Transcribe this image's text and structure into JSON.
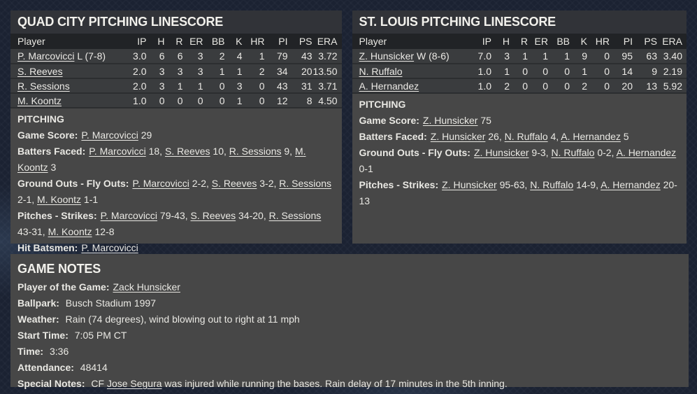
{
  "theme": {
    "page_background": "#1b2232",
    "panel_body": "#474747",
    "title_bar": "#313338",
    "table_header_bg": "#212326",
    "table_row_bg": "#3a3c3e",
    "row_separator": "#2c2e30",
    "title_text": "#f2f1ec",
    "body_text": "#e9e8e3"
  },
  "columns": [
    "Player",
    "IP",
    "H",
    "R",
    "ER",
    "BB",
    "K",
    "HR",
    "PI",
    "PS",
    "ERA"
  ],
  "left_panel": {
    "title": "QUAD CITY PITCHING LINESCORE",
    "rows": [
      {
        "player": "P. Marcovicci",
        "suffix": " L (7-8)",
        "stats": [
          "3.0",
          "6",
          "6",
          "3",
          "2",
          "4",
          "1",
          "79",
          "43",
          "3.72"
        ]
      },
      {
        "player": "S. Reeves",
        "suffix": "",
        "stats": [
          "2.0",
          "3",
          "3",
          "3",
          "1",
          "1",
          "2",
          "34",
          "20",
          "13.50"
        ]
      },
      {
        "player": "R. Sessions",
        "suffix": "",
        "stats": [
          "2.0",
          "3",
          "1",
          "1",
          "0",
          "3",
          "0",
          "43",
          "31",
          "3.71"
        ]
      },
      {
        "player": "M. Koontz",
        "suffix": "",
        "stats": [
          "1.0",
          "0",
          "0",
          "0",
          "0",
          "1",
          "0",
          "12",
          "8",
          "4.50"
        ]
      }
    ],
    "section_title": "PITCHING",
    "notes": [
      {
        "label": "Game Score:",
        "runs": [
          {
            "link": "P. Marcovicci"
          },
          {
            "text": " 29"
          }
        ]
      },
      {
        "label": "Batters Faced:",
        "runs": [
          {
            "link": "P. Marcovicci"
          },
          {
            "text": " 18, "
          },
          {
            "link": "S. Reeves"
          },
          {
            "text": " 10, "
          },
          {
            "link": "R. Sessions"
          },
          {
            "text": " 9, "
          },
          {
            "link": "M. Koontz"
          },
          {
            "text": " 3"
          }
        ]
      },
      {
        "label": "Ground Outs - Fly Outs:",
        "runs": [
          {
            "link": "P. Marcovicci"
          },
          {
            "text": " 2-2, "
          },
          {
            "link": "S. Reeves"
          },
          {
            "text": " 3-2, "
          },
          {
            "link": "R. Sessions"
          },
          {
            "text": " 2-1, "
          },
          {
            "link": "M. Koontz"
          },
          {
            "text": " 1-1"
          }
        ]
      },
      {
        "label": "Pitches - Strikes:",
        "runs": [
          {
            "link": "P. Marcovicci"
          },
          {
            "text": " 79-43, "
          },
          {
            "link": "S. Reeves"
          },
          {
            "text": " 34-20, "
          },
          {
            "link": "R. Sessions"
          },
          {
            "text": " 43-31, "
          },
          {
            "link": "M. Koontz"
          },
          {
            "text": " 12-8"
          }
        ]
      },
      {
        "label": "Hit Batsmen:",
        "runs": [
          {
            "link": "P. Marcovicci"
          }
        ]
      }
    ]
  },
  "right_panel": {
    "title": "ST. LOUIS PITCHING LINESCORE",
    "rows": [
      {
        "player": "Z. Hunsicker",
        "suffix": " W (8-6)",
        "stats": [
          "7.0",
          "3",
          "1",
          "1",
          "1",
          "9",
          "0",
          "95",
          "63",
          "3.40"
        ]
      },
      {
        "player": "N. Ruffalo",
        "suffix": "",
        "stats": [
          "1.0",
          "1",
          "0",
          "0",
          "0",
          "1",
          "0",
          "14",
          "9",
          "2.19"
        ]
      },
      {
        "player": "A. Hernandez",
        "suffix": "",
        "stats": [
          "1.0",
          "2",
          "0",
          "0",
          "0",
          "2",
          "0",
          "20",
          "13",
          "5.92"
        ]
      }
    ],
    "section_title": "PITCHING",
    "notes": [
      {
        "label": "Game Score:",
        "runs": [
          {
            "link": "Z. Hunsicker"
          },
          {
            "text": " 75"
          }
        ]
      },
      {
        "label": "Batters Faced:",
        "runs": [
          {
            "link": "Z. Hunsicker"
          },
          {
            "text": " 26, "
          },
          {
            "link": "N. Ruffalo"
          },
          {
            "text": " 4, "
          },
          {
            "link": "A. Hernandez"
          },
          {
            "text": " 5"
          }
        ]
      },
      {
        "label": "Ground Outs - Fly Outs:",
        "runs": [
          {
            "link": "Z. Hunsicker"
          },
          {
            "text": " 9-3, "
          },
          {
            "link": "N. Ruffalo"
          },
          {
            "text": " 0-2, "
          },
          {
            "link": "A. Hernandez"
          },
          {
            "text": " 0-1"
          }
        ]
      },
      {
        "label": "Pitches - Strikes:",
        "runs": [
          {
            "link": "Z. Hunsicker"
          },
          {
            "text": " 95-63, "
          },
          {
            "link": "N. Ruffalo"
          },
          {
            "text": " 14-9, "
          },
          {
            "link": "A. Hernandez"
          },
          {
            "text": " 20-13"
          }
        ]
      }
    ]
  },
  "game_notes": {
    "title": "GAME NOTES",
    "notes": [
      {
        "label": "Player of the Game:",
        "runs": [
          {
            "link": "Zack Hunsicker"
          }
        ]
      },
      {
        "label": "Ballpark:",
        "runs": [
          {
            "text": " Busch Stadium 1997"
          }
        ]
      },
      {
        "label": "Weather:",
        "runs": [
          {
            "text": " Rain (74 degrees), wind blowing out to right at 11 mph"
          }
        ]
      },
      {
        "label": "Start Time:",
        "runs": [
          {
            "text": " 7:05 PM CT"
          }
        ]
      },
      {
        "label": "Time:",
        "runs": [
          {
            "text": " 3:36"
          }
        ]
      },
      {
        "label": "Attendance:",
        "runs": [
          {
            "text": " 48414"
          }
        ]
      },
      {
        "label": "Special Notes:",
        "runs": [
          {
            "text": " CF "
          },
          {
            "link": "Jose Segura"
          },
          {
            "text": " was injured while running the bases. Rain delay of 17 minutes in the 5th inning."
          }
        ]
      }
    ]
  }
}
